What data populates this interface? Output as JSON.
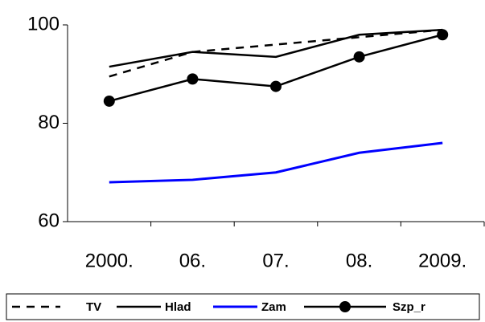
{
  "chart_data": {
    "type": "line",
    "categories": [
      "2000.",
      "06.",
      "07.",
      "08.",
      "2009."
    ],
    "ylim": [
      60,
      100
    ],
    "yticks": [
      60,
      80,
      100
    ],
    "series": [
      {
        "name": "TV",
        "color": "#000000",
        "style": "dashed",
        "values": [
          89.5,
          94.5,
          96,
          97.5,
          99
        ]
      },
      {
        "name": "Hlad",
        "color": "#000000",
        "style": "solid",
        "values": [
          91.5,
          94.5,
          93.5,
          98,
          99
        ]
      },
      {
        "name": "Zam",
        "color": "#0000ff",
        "style": "solid",
        "values": [
          68,
          68.5,
          70,
          74,
          76
        ]
      },
      {
        "name": "Szp_r",
        "color": "#000000",
        "style": "solid",
        "marker": "circle",
        "values": [
          84.5,
          89,
          87.5,
          93.5,
          98
        ]
      }
    ]
  }
}
